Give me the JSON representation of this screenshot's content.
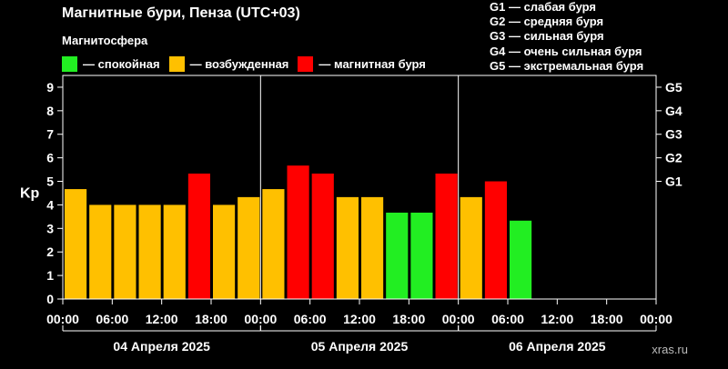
{
  "title": "Магнитные бури, Пенза (UTC+03)",
  "legend": {
    "title": "Магнитосфера",
    "items": [
      {
        "label": "— спокойная",
        "color": "#22ee22"
      },
      {
        "label": "— возбужденная",
        "color": "#ffc000"
      },
      {
        "label": "— магнитная буря",
        "color": "#ff0000"
      }
    ]
  },
  "g_levels": [
    {
      "label": "G1 — слабая буря"
    },
    {
      "label": "G2 — средняя буря"
    },
    {
      "label": "G3 — сильная буря"
    },
    {
      "label": "G4 — очень сильная буря"
    },
    {
      "label": "G5 — экстремальная буря"
    }
  ],
  "watermark": "xras.ru",
  "chart_data": {
    "type": "bar",
    "ylabel": "Kp",
    "ylim": [
      0,
      9.5
    ],
    "yticks": [
      "0",
      "1",
      "2",
      "3",
      "4",
      "5",
      "6",
      "7",
      "8",
      "9"
    ],
    "right_ticks": [
      {
        "label": "G1",
        "value": 5
      },
      {
        "label": "G2",
        "value": 6
      },
      {
        "label": "G3",
        "value": 7
      },
      {
        "label": "G4",
        "value": 8
      },
      {
        "label": "G5",
        "value": 9
      }
    ],
    "xtick_labels": [
      "00:00",
      "06:00",
      "12:00",
      "18:00",
      "00:00",
      "06:00",
      "12:00",
      "18:00",
      "00:00",
      "06:00",
      "12:00",
      "18:00",
      "00:00"
    ],
    "days": [
      "04 Апреля 2025",
      "05 Апреля 2025",
      "06 Апреля 2025"
    ],
    "slots_per_day": 8,
    "values": [
      4.67,
      4.0,
      4.0,
      4.0,
      4.0,
      5.33,
      4.0,
      4.33,
      4.67,
      5.67,
      5.33,
      4.33,
      4.33,
      3.67,
      3.67,
      5.33,
      4.33,
      5.0,
      3.33
    ],
    "colors": [
      "#ffc000",
      "#ffc000",
      "#ffc000",
      "#ffc000",
      "#ffc000",
      "#ff0000",
      "#ffc000",
      "#ffc000",
      "#ffc000",
      "#ff0000",
      "#ff0000",
      "#ffc000",
      "#ffc000",
      "#22ee22",
      "#22ee22",
      "#ff0000",
      "#ffc000",
      "#ff0000",
      "#22ee22"
    ],
    "grid": false
  }
}
